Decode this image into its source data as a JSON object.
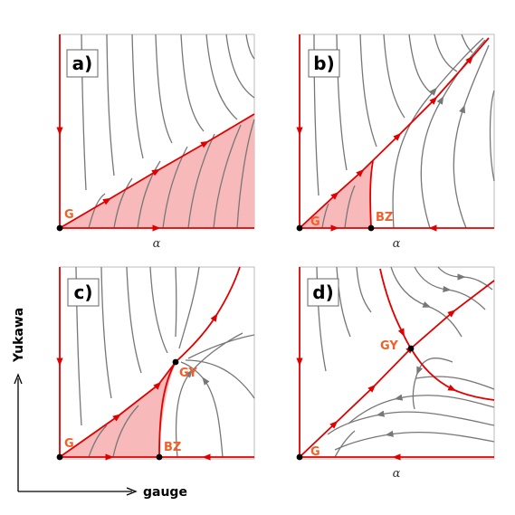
{
  "colors": {
    "flow": "#777777",
    "separatrix": "#e00000",
    "basin": "#f7b9b9",
    "fixed_point_label": "#f0602a",
    "fixed_point": "#000000",
    "frame": "#bbbbbb"
  },
  "axes": {
    "x_word": "gauge",
    "y_word": "Yukawa"
  },
  "panels": [
    {
      "label": "a)",
      "x_label": "α",
      "points": [
        {
          "name": "G"
        }
      ]
    },
    {
      "label": "b)",
      "x_label": "α",
      "points": [
        {
          "name": "G"
        },
        {
          "name": "BZ"
        }
      ]
    },
    {
      "label": "c)",
      "x_label": "",
      "points": [
        {
          "name": "G"
        },
        {
          "name": "BZ"
        },
        {
          "name": "GY"
        }
      ]
    },
    {
      "label": "d)",
      "x_label": "α",
      "points": [
        {
          "name": "G"
        },
        {
          "name": "GY"
        }
      ]
    }
  ]
}
